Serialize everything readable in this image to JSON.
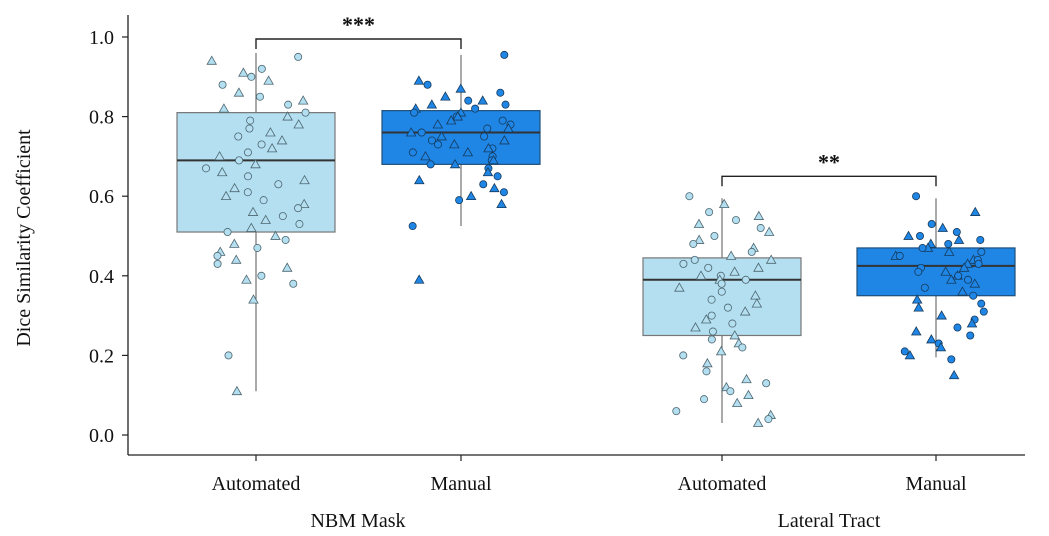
{
  "chart_data": {
    "type": "box",
    "ylabel": "Dice Similarity Coefficient",
    "ylim": [
      -0.05,
      1.03
    ],
    "yticks": [
      0.0,
      0.2,
      0.4,
      0.6,
      0.8,
      1.0
    ],
    "ytick_labels": [
      "0.0",
      "0.2",
      "0.4",
      "0.6",
      "0.8",
      "1.0"
    ],
    "groups": [
      {
        "label": "NBM Mask",
        "categories": [
          "Automated",
          "Manual"
        ]
      },
      {
        "label": "Lateral Tract",
        "categories": [
          "Automated",
          "Manual"
        ]
      }
    ],
    "boxes": [
      {
        "group": "NBM Mask",
        "category": "Automated",
        "color": "#b3dff0",
        "q1": 0.51,
        "median": 0.69,
        "q3": 0.81,
        "whisker_low": 0.11,
        "whisker_high": 0.96,
        "points": [
          0.95,
          0.94,
          0.92,
          0.91,
          0.9,
          0.89,
          0.88,
          0.86,
          0.85,
          0.84,
          0.83,
          0.82,
          0.81,
          0.8,
          0.79,
          0.78,
          0.77,
          0.76,
          0.75,
          0.74,
          0.73,
          0.72,
          0.71,
          0.7,
          0.69,
          0.68,
          0.67,
          0.66,
          0.65,
          0.64,
          0.63,
          0.62,
          0.61,
          0.6,
          0.59,
          0.58,
          0.57,
          0.56,
          0.55,
          0.54,
          0.53,
          0.52,
          0.51,
          0.5,
          0.49,
          0.48,
          0.47,
          0.46,
          0.45,
          0.44,
          0.43,
          0.42,
          0.4,
          0.39,
          0.38,
          0.34,
          0.2,
          0.11
        ]
      },
      {
        "group": "NBM Mask",
        "category": "Manual",
        "color": "#1f86e6",
        "q1": 0.68,
        "median": 0.76,
        "q3": 0.815,
        "whisker_low": 0.525,
        "whisker_high": 0.955,
        "points": [
          0.955,
          0.89,
          0.88,
          0.87,
          0.86,
          0.85,
          0.84,
          0.84,
          0.83,
          0.83,
          0.82,
          0.82,
          0.81,
          0.81,
          0.8,
          0.8,
          0.79,
          0.79,
          0.78,
          0.78,
          0.77,
          0.77,
          0.76,
          0.76,
          0.75,
          0.75,
          0.74,
          0.74,
          0.73,
          0.73,
          0.72,
          0.72,
          0.71,
          0.71,
          0.7,
          0.7,
          0.69,
          0.69,
          0.68,
          0.68,
          0.67,
          0.66,
          0.65,
          0.64,
          0.63,
          0.62,
          0.61,
          0.6,
          0.59,
          0.58,
          0.525,
          0.39
        ]
      },
      {
        "group": "Lateral Tract",
        "category": "Automated",
        "color": "#b3dff0",
        "q1": 0.25,
        "median": 0.39,
        "q3": 0.445,
        "whisker_low": 0.03,
        "whisker_high": 0.595,
        "points": [
          0.6,
          0.58,
          0.56,
          0.55,
          0.54,
          0.53,
          0.52,
          0.51,
          0.5,
          0.49,
          0.48,
          0.47,
          0.46,
          0.45,
          0.44,
          0.44,
          0.43,
          0.42,
          0.42,
          0.41,
          0.4,
          0.4,
          0.39,
          0.39,
          0.38,
          0.37,
          0.36,
          0.35,
          0.34,
          0.33,
          0.32,
          0.31,
          0.3,
          0.29,
          0.28,
          0.27,
          0.26,
          0.25,
          0.24,
          0.23,
          0.22,
          0.21,
          0.2,
          0.18,
          0.16,
          0.14,
          0.13,
          0.12,
          0.11,
          0.1,
          0.09,
          0.08,
          0.06,
          0.05,
          0.04,
          0.03
        ]
      },
      {
        "group": "Lateral Tract",
        "category": "Manual",
        "color": "#1f86e6",
        "q1": 0.35,
        "median": 0.425,
        "q3": 0.47,
        "whisker_low": 0.195,
        "whisker_high": 0.595,
        "points": [
          0.6,
          0.56,
          0.53,
          0.52,
          0.51,
          0.5,
          0.5,
          0.49,
          0.49,
          0.48,
          0.48,
          0.47,
          0.47,
          0.46,
          0.46,
          0.45,
          0.45,
          0.44,
          0.44,
          0.43,
          0.43,
          0.42,
          0.42,
          0.41,
          0.41,
          0.4,
          0.4,
          0.39,
          0.39,
          0.38,
          0.37,
          0.36,
          0.35,
          0.34,
          0.33,
          0.32,
          0.31,
          0.3,
          0.29,
          0.28,
          0.27,
          0.26,
          0.25,
          0.24,
          0.23,
          0.22,
          0.21,
          0.2,
          0.19,
          0.15
        ]
      }
    ],
    "significance": [
      {
        "group": "NBM Mask",
        "label": "***",
        "y": 0.995
      },
      {
        "group": "Lateral Tract",
        "label": "**",
        "y": 0.65
      }
    ],
    "marker_shapes": [
      "circle",
      "triangle"
    ]
  }
}
